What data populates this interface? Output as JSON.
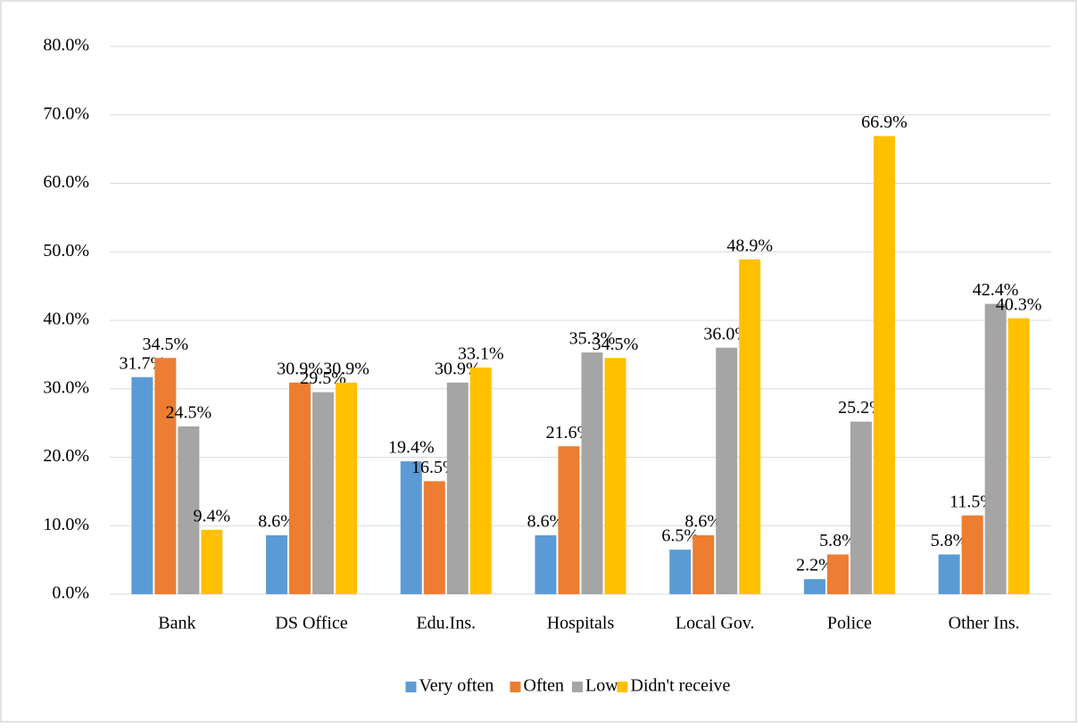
{
  "chart_data": {
    "type": "bar",
    "categories": [
      "Bank",
      "DS Office",
      "Edu.Ins.",
      "Hospitals",
      "Local Gov.",
      "Police",
      "Other Ins."
    ],
    "series": [
      {
        "name": "Very often",
        "color": "#5b9bd5",
        "values": [
          31.7,
          8.6,
          19.4,
          8.6,
          6.5,
          2.2,
          5.8
        ],
        "value_labels": [
          "31.7%",
          "8.6%",
          "19.4%",
          "8.6%",
          "6.5%",
          "2.2%",
          "5.8%"
        ]
      },
      {
        "name": "Often",
        "color": "#ed7d31",
        "values": [
          34.5,
          30.9,
          16.5,
          21.6,
          8.6,
          5.8,
          11.5
        ],
        "value_labels": [
          "34.5%",
          "30.9%",
          "16.5%",
          "21.6%",
          "8.6%",
          "5.8%",
          "11.5%"
        ]
      },
      {
        "name": "Low",
        "color": "#a5a5a5",
        "values": [
          24.5,
          29.5,
          30.9,
          35.3,
          36.0,
          25.2,
          42.4
        ],
        "value_labels": [
          "24.5%",
          "29.5%",
          "30.9%",
          "35.3%",
          "36.0%",
          "25.2%",
          "42.4%"
        ]
      },
      {
        "name": "Didn't receive",
        "color": "#ffc000",
        "values": [
          9.4,
          30.9,
          33.1,
          34.5,
          48.9,
          66.9,
          40.3
        ],
        "value_labels": [
          "9.4%",
          "30.9%",
          "33.1%",
          "34.5%",
          "48.9%",
          "66.9%",
          "40.3%"
        ]
      }
    ],
    "ylim": [
      0,
      80
    ],
    "yticks": [
      {
        "value": 0,
        "label": "0.0%"
      },
      {
        "value": 10,
        "label": "10.0%"
      },
      {
        "value": 20,
        "label": "20.0%"
      },
      {
        "value": 30,
        "label": "30.0%"
      },
      {
        "value": 40,
        "label": "40.0%"
      },
      {
        "value": 50,
        "label": "50.0%"
      },
      {
        "value": 60,
        "label": "60.0%"
      },
      {
        "value": 70,
        "label": "70.0%"
      },
      {
        "value": 80,
        "label": "80.0%"
      }
    ],
    "grid": true,
    "legend": "bottom"
  }
}
